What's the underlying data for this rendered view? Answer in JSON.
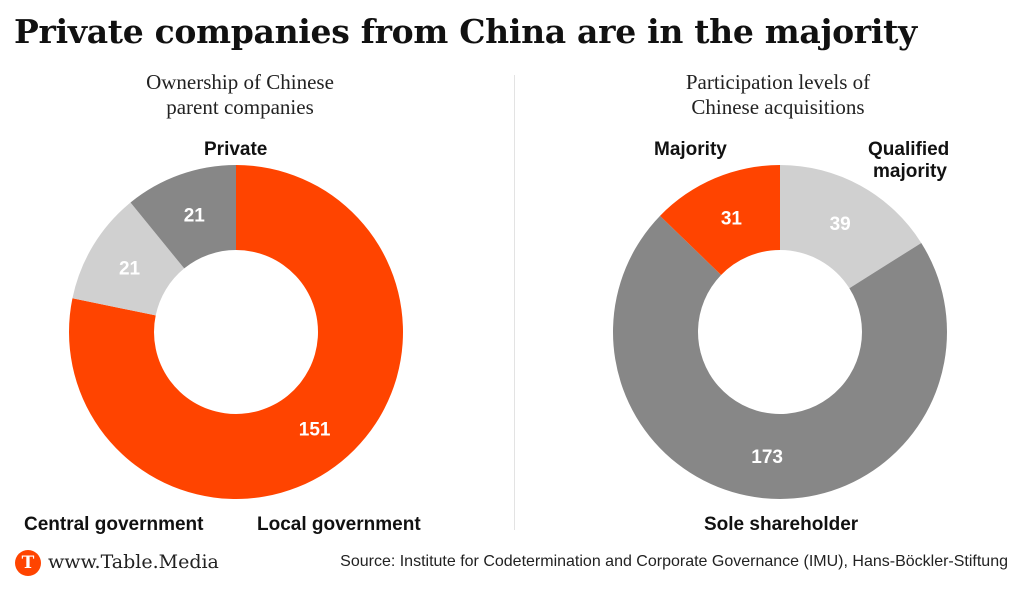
{
  "title": "Private companies from China are in the majority",
  "chart_data": [
    {
      "type": "pie",
      "title": "Ownership of Chinese parent companies",
      "title_lines": [
        "Ownership of Chinese",
        "parent companies"
      ],
      "categories": [
        "Private",
        "Local government",
        "Central government"
      ],
      "values": [
        151,
        21,
        21
      ],
      "colors": [
        "#ff4400",
        "#d0d0d0",
        "#878787"
      ],
      "value_label_colors": [
        "#ffffff",
        "#ffffff",
        "#ffffff"
      ]
    },
    {
      "type": "pie",
      "title": "Participation levels of Chinese acquisitions",
      "title_lines": [
        "Participation levels of",
        "Chinese acquisitions"
      ],
      "categories": [
        "Qualified majority",
        "Sole shareholder",
        "Majority"
      ],
      "category_lines": [
        [
          "Qualified",
          "majority"
        ],
        [
          "Sole shareholder"
        ],
        [
          "Majority"
        ]
      ],
      "values": [
        39,
        173,
        31
      ],
      "colors": [
        "#d0d0d0",
        "#878787",
        "#ff4400"
      ],
      "value_label_colors": [
        "#ffffff",
        "#ffffff",
        "#ffffff"
      ]
    }
  ],
  "footer": {
    "logo_letter": "T",
    "site": "www.Table.Media",
    "source": "Source: Institute for Codetermination and Corporate Governance (IMU), Hans-Böckler-Stiftung"
  }
}
